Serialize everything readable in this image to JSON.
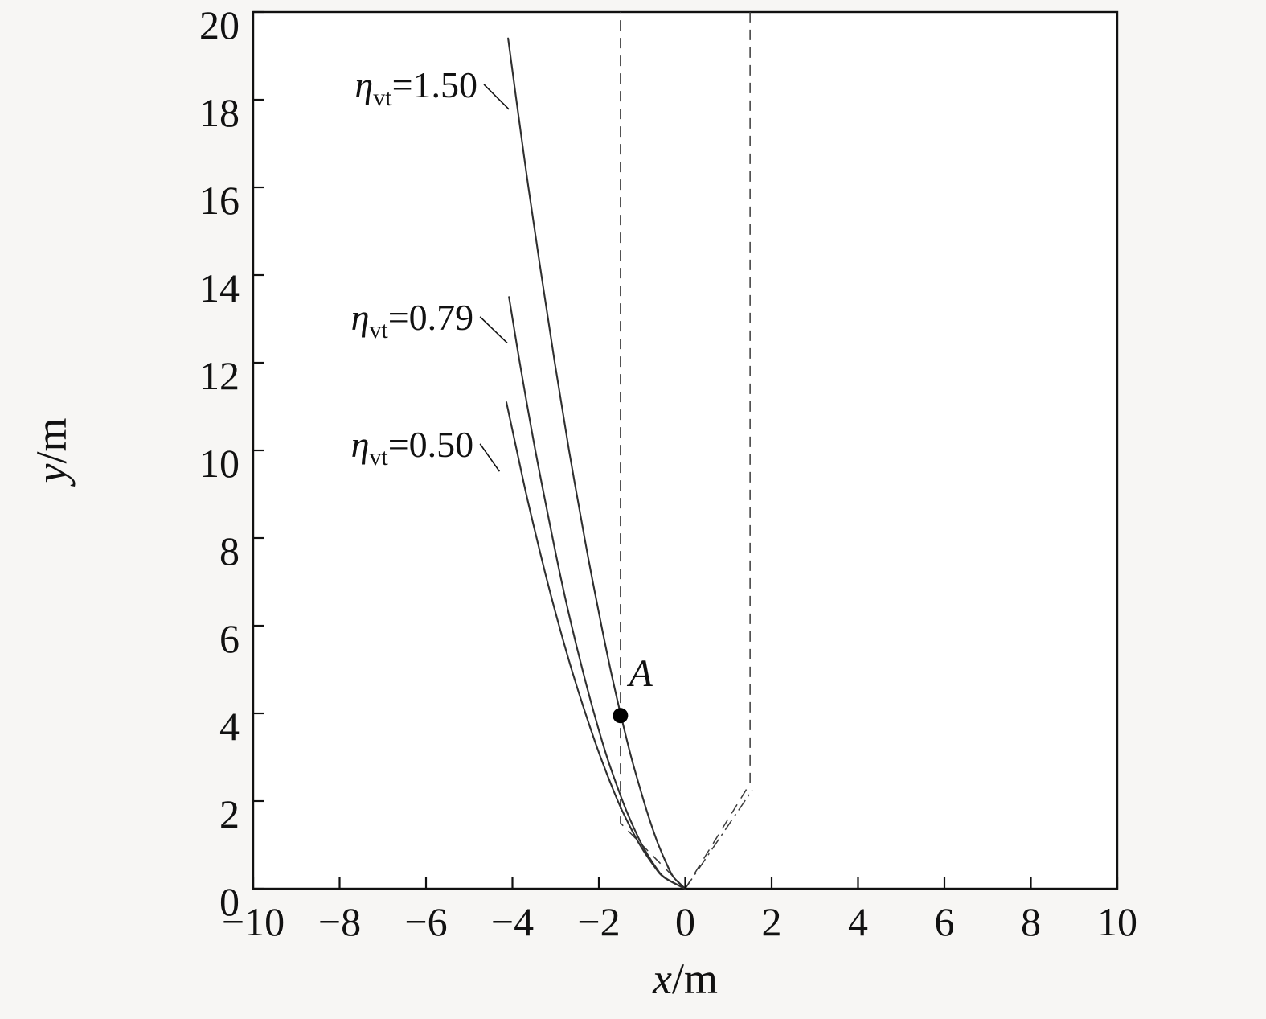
{
  "figure": {
    "description": "Trajectory plot of three curves for different eta_vt values with a dashed corridor and marked point A"
  },
  "chart_data": {
    "type": "line",
    "title": "",
    "xlabel_var": "x",
    "xlabel_unit": "/m",
    "ylabel_var": "y",
    "ylabel_unit": "/m",
    "xlim": [
      -10,
      10
    ],
    "ylim": [
      0,
      20
    ],
    "xticks": [
      -10,
      -8,
      -6,
      -4,
      -2,
      0,
      2,
      4,
      6,
      8,
      10
    ],
    "yticks": [
      0,
      2,
      4,
      6,
      8,
      10,
      12,
      14,
      16,
      18,
      20
    ],
    "grid": false,
    "legend_position": "none",
    "curve_color": "#2f2f2f",
    "guide_color": "#3a3a3a",
    "series": [
      {
        "name": "eta-vt-1.50",
        "label": {
          "sym": "η",
          "sub": "vt",
          "val": "=1.50"
        },
        "points": [
          [
            0,
            0
          ],
          [
            -0.26,
            0.25
          ],
          [
            -0.4,
            0.5
          ],
          [
            -0.62,
            1
          ],
          [
            -0.8,
            1.5
          ],
          [
            -0.96,
            2
          ],
          [
            -1.25,
            3
          ],
          [
            -1.5,
            4
          ],
          [
            -1.73,
            5
          ],
          [
            -1.94,
            6
          ],
          [
            -2.14,
            7
          ],
          [
            -2.33,
            8
          ],
          [
            -2.69,
            10
          ],
          [
            -3.02,
            12
          ],
          [
            -3.33,
            14
          ],
          [
            -3.63,
            16
          ],
          [
            -3.91,
            18
          ],
          [
            -4.1,
            19.4
          ]
        ]
      },
      {
        "name": "eta-vt-0.79",
        "label": {
          "sym": "η",
          "sub": "vt",
          "val": "=0.79"
        },
        "points": [
          [
            0,
            0
          ],
          [
            -0.47,
            0.25
          ],
          [
            -0.69,
            0.5
          ],
          [
            -1.0,
            1
          ],
          [
            -1.24,
            1.5
          ],
          [
            -1.45,
            2
          ],
          [
            -1.81,
            3
          ],
          [
            -2.11,
            4
          ],
          [
            -2.38,
            5
          ],
          [
            -2.63,
            6
          ],
          [
            -2.86,
            7
          ],
          [
            -3.07,
            8
          ],
          [
            -3.47,
            10
          ],
          [
            -3.83,
            12
          ],
          [
            -4.08,
            13.5
          ]
        ]
      },
      {
        "name": "eta-vt-0.50",
        "label": {
          "sym": "η",
          "sub": "vt",
          "val": "=0.50"
        },
        "points": [
          [
            0,
            0
          ],
          [
            -0.48,
            0.25
          ],
          [
            -0.71,
            0.5
          ],
          [
            -1.05,
            1
          ],
          [
            -1.32,
            1.5
          ],
          [
            -1.56,
            2
          ],
          [
            -1.96,
            3
          ],
          [
            -2.31,
            4
          ],
          [
            -2.63,
            5
          ],
          [
            -2.92,
            6
          ],
          [
            -3.19,
            7
          ],
          [
            -3.44,
            8
          ],
          [
            -3.68,
            9
          ],
          [
            -3.9,
            10
          ],
          [
            -4.14,
            11.1
          ]
        ]
      }
    ],
    "guides": {
      "dashed": [
        {
          "name": "left-corridor-boundary",
          "points": [
            [
              0,
              0
            ],
            [
              -1.5,
              1.5
            ],
            [
              -1.5,
              20
            ]
          ]
        },
        {
          "name": "right-corridor-boundary",
          "points": [
            [
              0,
              0
            ],
            [
              1.5,
              2.4
            ],
            [
              1.5,
              20
            ]
          ]
        }
      ],
      "dashdot": [
        {
          "name": "dashdot-ray",
          "points": [
            [
              0,
              0
            ],
            [
              1.55,
              2.25
            ]
          ]
        }
      ]
    },
    "annotations": {
      "series_labels": [
        {
          "series": 0,
          "leader": [
            [
              -4.66,
              18.35
            ],
            [
              -4.08,
              17.78
            ]
          ]
        },
        {
          "series": 1,
          "leader": [
            [
              -4.75,
              13.05
            ],
            [
              -4.12,
              12.45
            ]
          ]
        },
        {
          "series": 2,
          "leader": [
            [
              -4.75,
              10.15
            ],
            [
              -4.3,
              9.52
            ]
          ]
        }
      ],
      "point": {
        "x": -1.5,
        "y": 3.95,
        "label": "A",
        "label_pos": [
          -1.03,
          4.62
        ]
      }
    }
  }
}
